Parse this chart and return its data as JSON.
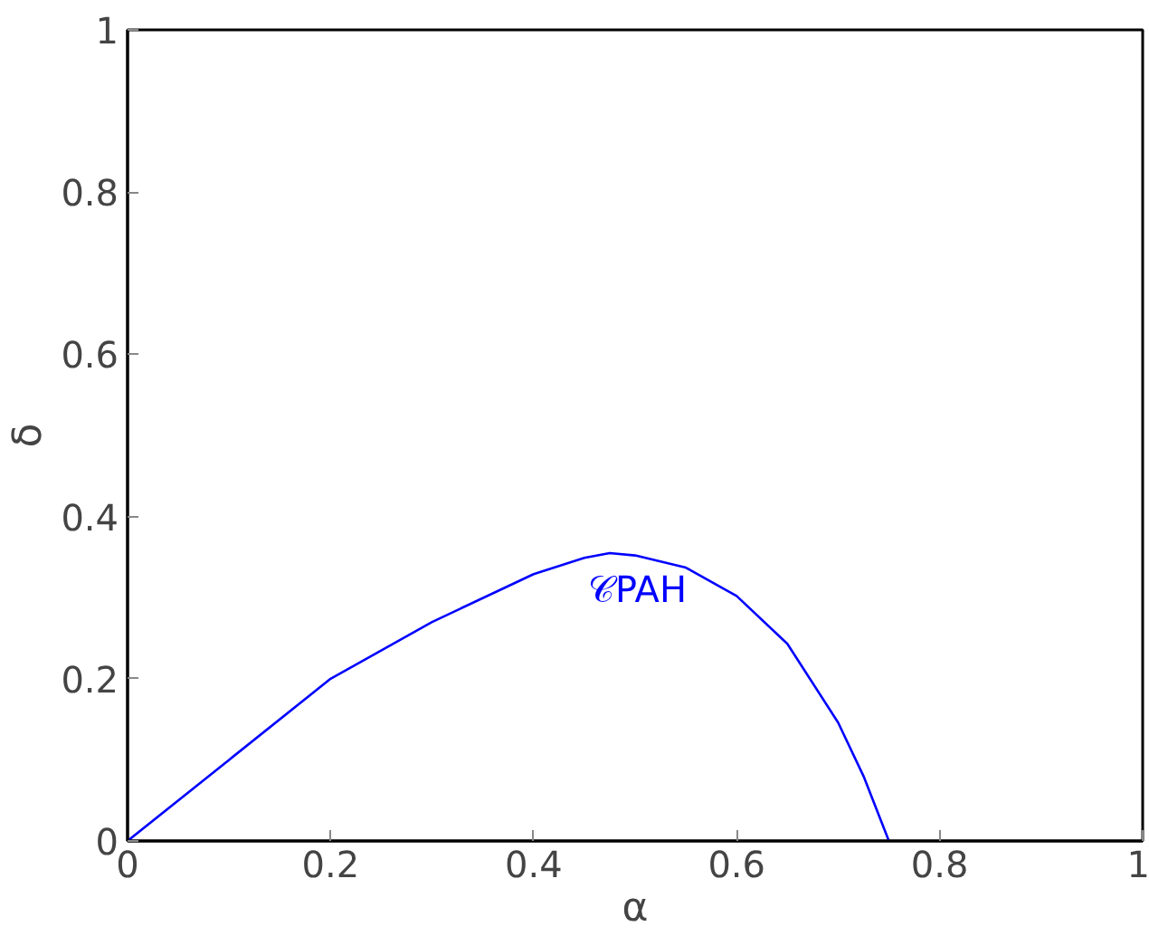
{
  "chart_data": {
    "type": "line",
    "xlabel": "α",
    "ylabel": "δ",
    "xlim": [
      0,
      1
    ],
    "ylim": [
      0,
      1
    ],
    "xticks": [
      0,
      0.2,
      0.4,
      0.6,
      0.8,
      1
    ],
    "yticks": [
      0,
      0.2,
      0.4,
      0.6,
      0.8,
      1
    ],
    "grid": false,
    "marker": "none",
    "line_style": "solid",
    "series": [
      {
        "name": "𝒞PAH",
        "color": "#0000ff",
        "x": [
          0,
          0.1,
          0.2,
          0.3,
          0.4,
          0.45,
          0.475,
          0.5,
          0.55,
          0.6,
          0.65,
          0.7,
          0.725,
          0.75
        ],
        "values": [
          0,
          0.1,
          0.2,
          0.27,
          0.329,
          0.349,
          0.355,
          0.352,
          0.337,
          0.302,
          0.243,
          0.146,
          0.08,
          0
        ]
      }
    ]
  }
}
